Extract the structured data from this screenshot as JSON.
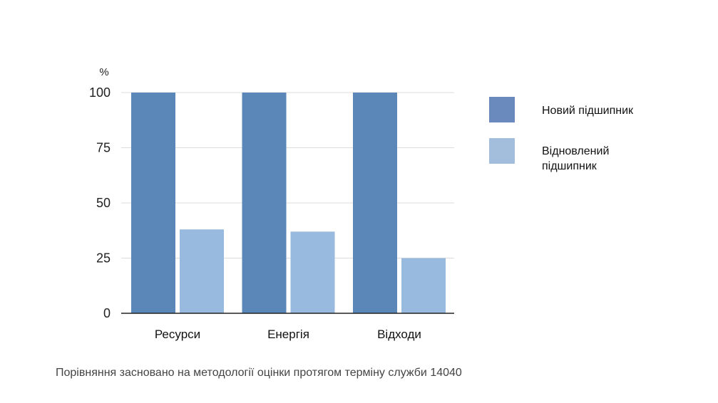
{
  "chart_data": {
    "type": "bar",
    "ylabel": "%",
    "categories": [
      "Ресурси",
      "Енергія",
      "Відходи"
    ],
    "series": [
      {
        "name": "Новий підшипник",
        "values": [
          100,
          100,
          100
        ],
        "color": "#5b86b8"
      },
      {
        "name": "Відновлений підшипник",
        "values": [
          38,
          37,
          25
        ],
        "color": "#98bade"
      }
    ],
    "ylim": [
      0,
      100
    ],
    "yticks": [
      0,
      25,
      50,
      75,
      100
    ],
    "grid": true,
    "legend_position": "right"
  },
  "legend": {
    "new_label": "Новий підшипник",
    "new_color": "#6a89bc",
    "restored_label": "Відновлений підшипник",
    "restored_color": "#a3bedd"
  },
  "caption": "Порівняння засновано на методології оцінки протягом терміну служби 14040"
}
